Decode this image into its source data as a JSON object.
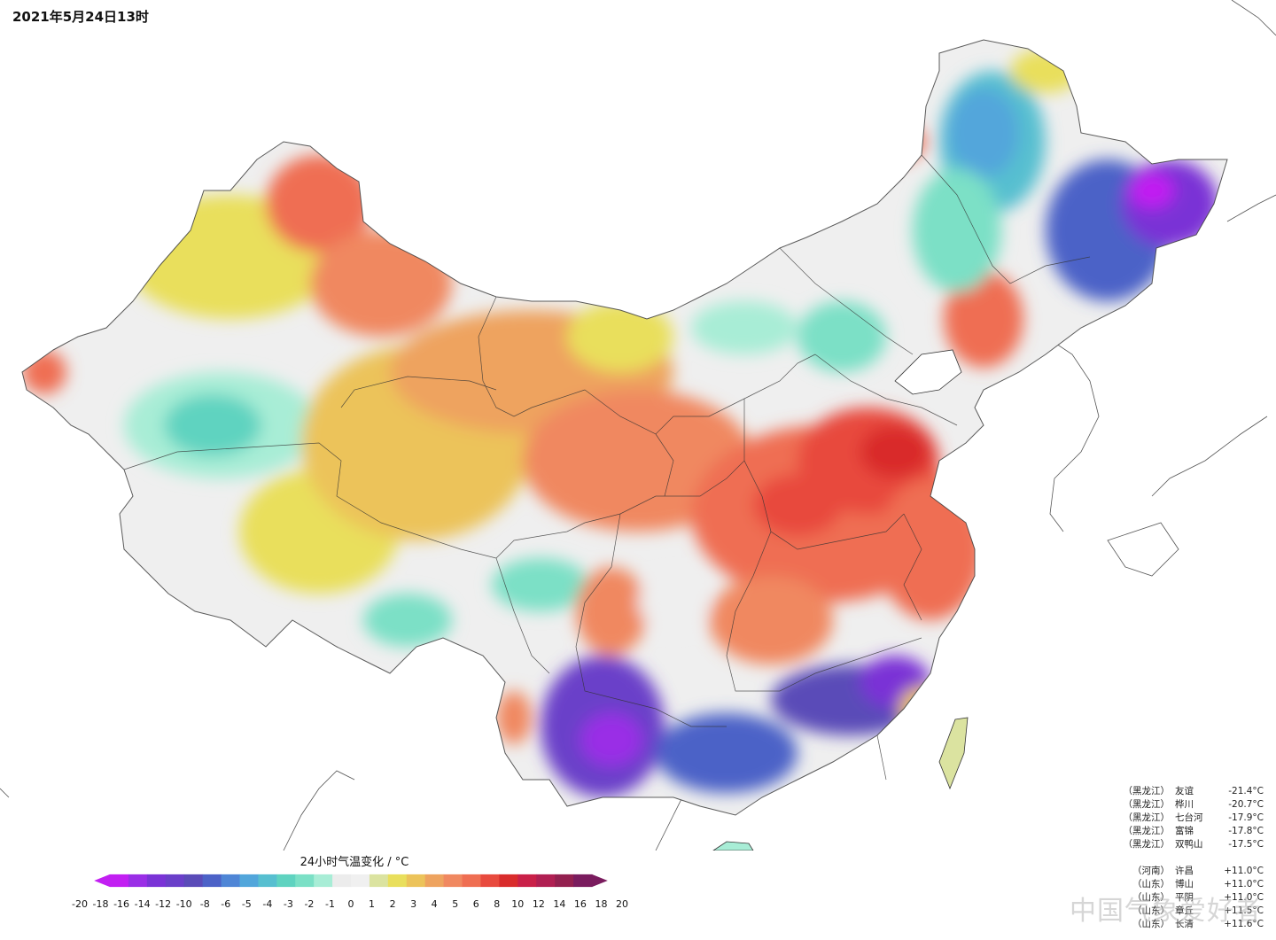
{
  "title": "2021年5月24日13时",
  "legend": {
    "title": "24小时气温变化 / °C",
    "ticks": [
      "-20",
      "-18",
      "-16",
      "-14",
      "-12",
      "-10",
      "-8",
      "-6",
      "-5",
      "-4",
      "-3",
      "-2",
      "-1",
      "0",
      "1",
      "2",
      "3",
      "4",
      "5",
      "6",
      "8",
      "10",
      "12",
      "14",
      "16",
      "18",
      "20"
    ],
    "colors": [
      "#c21ff2",
      "#9a2ee6",
      "#7a33d6",
      "#6a3fc9",
      "#5a4bb8",
      "#4c62c7",
      "#4f86d6",
      "#52a6db",
      "#57bfd0",
      "#5fd3c0",
      "#7be0c6",
      "#a8edd6",
      "#ececec",
      "#f0f0f0",
      "#dbe3a0",
      "#e9df5c",
      "#ecc35a",
      "#eea35f",
      "#f08860",
      "#ef6e52",
      "#e84a3e",
      "#d92c2c",
      "#c92048",
      "#b01f52",
      "#93204f",
      "#7a1c5e"
    ]
  },
  "stations_min": [
    {
      "prov": "（黑龙江）",
      "name": "友谊",
      "value": "-21.4°C"
    },
    {
      "prov": "（黑龙江）",
      "name": "桦川",
      "value": "-20.7°C"
    },
    {
      "prov": "（黑龙江）",
      "name": "七台河",
      "value": "-17.9°C"
    },
    {
      "prov": "（黑龙江）",
      "name": "富锦",
      "value": "-17.8°C"
    },
    {
      "prov": "（黑龙江）",
      "name": "双鸭山",
      "value": "-17.5°C"
    }
  ],
  "stations_max": [
    {
      "prov": "（河南）",
      "name": "许昌",
      "value": "+11.0°C"
    },
    {
      "prov": "（山东）",
      "name": "博山",
      "value": "+11.0°C"
    },
    {
      "prov": "（山东）",
      "name": "平阴",
      "value": "+11.0°C"
    },
    {
      "prov": "（山东）",
      "name": "章丘",
      "value": "+11.5°C"
    },
    {
      "prov": "（山东）",
      "name": "长清",
      "value": "+11.6°C"
    }
  ],
  "watermark": "中国气象爱好者"
}
